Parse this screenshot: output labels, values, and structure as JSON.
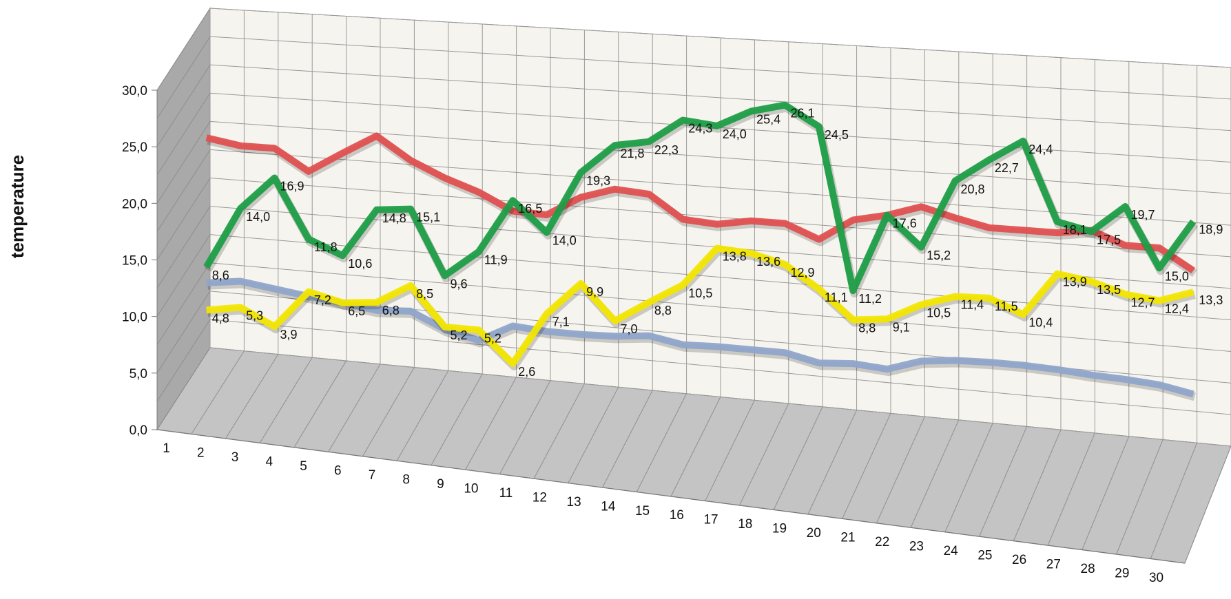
{
  "chart_data": {
    "type": "line",
    "title": "",
    "xlabel": "",
    "ylabel": "temperature",
    "ylim": [
      0,
      30
    ],
    "yticks": [
      "0,0",
      "5,0",
      "10,0",
      "15,0",
      "20,0",
      "25,0",
      "30,0"
    ],
    "categories": [
      "1",
      "2",
      "3",
      "4",
      "5",
      "6",
      "7",
      "8",
      "9",
      "10",
      "11",
      "12",
      "13",
      "14",
      "15",
      "16",
      "17",
      "18",
      "19",
      "20",
      "21",
      "22",
      "23",
      "24",
      "25",
      "26",
      "27",
      "28",
      "29",
      "30"
    ],
    "grid": true,
    "legend": "none",
    "series": [
      {
        "color": "#e05050",
        "labeled": false,
        "values": [
          20.0,
          19.5,
          19.5,
          17.7,
          19.5,
          21.2,
          19.3,
          18.0,
          17.0,
          15.6,
          15.5,
          17.2,
          18.1,
          17.9,
          16.0,
          15.8,
          16.3,
          16.3,
          15.2,
          17.0,
          17.6,
          18.5,
          17.8,
          17.2,
          17.2,
          17.2,
          17.6,
          16.6,
          16.6,
          15.0
        ]
      },
      {
        "color": "#1f9e47",
        "labeled": true,
        "values": [
          8.6,
          14.0,
          16.9,
          11.8,
          10.6,
          14.8,
          15.1,
          9.6,
          11.9,
          16.5,
          14.0,
          19.3,
          21.8,
          22.3,
          24.3,
          24.0,
          25.4,
          26.1,
          24.5,
          11.2,
          17.6,
          15.2,
          20.8,
          22.7,
          24.4,
          18.1,
          17.5,
          19.7,
          15.0,
          18.9
        ],
        "labels": [
          "8,6",
          "14,0",
          "16,9",
          "11,8",
          "10,6",
          "14,8",
          "15,1",
          "9,6",
          "11,9",
          "16,5",
          "14,0",
          "19,3",
          "21,8",
          "22,3",
          "24,3",
          "24,0",
          "25,4",
          "26,1",
          "24,5",
          "11,2",
          "17,6",
          "15,2",
          "20,8",
          "22,7",
          "24,4",
          "18,1",
          "17,5",
          "19,7",
          "15,0",
          "18,9"
        ]
      },
      {
        "color": "#8fa5c9",
        "labeled": false,
        "values": [
          7.2,
          7.6,
          7.2,
          6.8,
          6.5,
          6.1,
          6.3,
          5.0,
          4.3,
          5.8,
          5.6,
          5.6,
          5.7,
          6.0,
          5.5,
          5.6,
          5.6,
          5.6,
          5.0,
          5.2,
          5.0,
          5.9,
          6.2,
          6.3,
          6.3,
          6.2,
          6.0,
          5.9,
          5.7,
          5.2
        ]
      },
      {
        "color": "#f2e600",
        "labeled": true,
        "values": [
          4.8,
          5.3,
          3.9,
          7.2,
          6.5,
          6.8,
          8.5,
          5.2,
          5.2,
          2.6,
          7.1,
          9.9,
          7.0,
          8.8,
          10.5,
          13.8,
          13.6,
          12.9,
          11.1,
          8.8,
          9.1,
          10.5,
          11.4,
          11.5,
          10.4,
          13.9,
          13.5,
          12.7,
          12.4,
          13.3
        ],
        "labels": [
          "4,8",
          "5,3",
          "3,9",
          "7,2",
          "6,5",
          "6,8",
          "8,5",
          "5,2",
          "5,2",
          "2,6",
          "7,1",
          "9,9",
          "7,0",
          "8,8",
          "10,5",
          "13,8",
          "13,6",
          "12,9",
          "11,1",
          "8,8",
          "9,1",
          "10,5",
          "11,4",
          "11,5",
          "10,4",
          "13,9",
          "13,5",
          "12,7",
          "12,4",
          "13,3"
        ]
      }
    ]
  }
}
